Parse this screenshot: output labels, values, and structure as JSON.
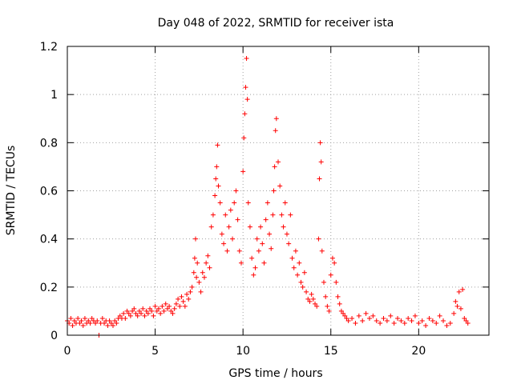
{
  "chart_data": {
    "type": "scatter",
    "title": "Day 048 of 2022, SRMTID for receiver ista",
    "xlabel": "GPS time / hours",
    "ylabel": "SRMTID / TECUs",
    "xlim": [
      0,
      24
    ],
    "ylim": [
      0,
      1.2
    ],
    "xticks": [
      0,
      5,
      10,
      15,
      20
    ],
    "yticks": [
      0,
      0.2,
      0.4,
      0.6,
      0.8,
      1,
      1.2
    ],
    "xtick_labels": [
      "0",
      "5",
      "10",
      "15",
      "20"
    ],
    "ytick_labels": [
      "0",
      "0.2",
      "0.4",
      "0.6",
      "0.8",
      "1",
      "1.2"
    ],
    "grid": true,
    "marker": "plus",
    "marker_color": "#ff0000",
    "series": [
      {
        "name": "SRMTID",
        "x": [
          0.0,
          0.1,
          0.2,
          0.3,
          0.4,
          0.5,
          0.6,
          0.7,
          0.8,
          0.9,
          1.0,
          1.1,
          1.2,
          1.3,
          1.4,
          1.5,
          1.6,
          1.7,
          1.8,
          1.9,
          2.0,
          2.1,
          2.2,
          2.3,
          2.4,
          2.5,
          2.6,
          2.7,
          2.8,
          2.9,
          3.0,
          3.1,
          3.2,
          3.3,
          3.4,
          3.5,
          3.6,
          3.7,
          3.8,
          3.9,
          4.0,
          4.1,
          4.2,
          4.3,
          4.4,
          4.5,
          4.6,
          4.7,
          4.8,
          4.9,
          5.0,
          5.1,
          5.2,
          5.3,
          5.4,
          5.5,
          5.6,
          5.7,
          5.8,
          5.9,
          6.0,
          6.1,
          6.2,
          6.3,
          6.4,
          6.5,
          6.6,
          6.7,
          6.8,
          6.9,
          7.0,
          7.1,
          7.2,
          7.25,
          7.3,
          7.35,
          7.4,
          7.5,
          7.6,
          7.7,
          7.8,
          7.9,
          8.0,
          8.1,
          8.2,
          8.3,
          8.4,
          8.45,
          8.5,
          8.55,
          8.6,
          8.7,
          8.8,
          8.9,
          9.0,
          9.1,
          9.2,
          9.3,
          9.4,
          9.5,
          9.6,
          9.7,
          9.8,
          9.9,
          10.0,
          10.05,
          10.1,
          10.15,
          10.2,
          10.25,
          10.3,
          10.4,
          10.5,
          10.6,
          10.7,
          10.8,
          10.9,
          11.0,
          11.1,
          11.2,
          11.3,
          11.4,
          11.5,
          11.6,
          11.7,
          11.75,
          11.8,
          11.85,
          11.9,
          12.0,
          12.1,
          12.2,
          12.3,
          12.4,
          12.5,
          12.6,
          12.7,
          12.8,
          12.9,
          13.0,
          13.1,
          13.2,
          13.3,
          13.4,
          13.5,
          13.6,
          13.7,
          13.8,
          13.9,
          14.0,
          14.1,
          14.2,
          14.3,
          14.35,
          14.4,
          14.45,
          14.5,
          14.6,
          14.7,
          14.8,
          14.9,
          15.0,
          15.1,
          15.2,
          15.3,
          15.4,
          15.5,
          15.6,
          15.7,
          15.8,
          15.9,
          16.0,
          16.2,
          16.4,
          16.6,
          16.8,
          17.0,
          17.2,
          17.4,
          17.6,
          17.8,
          18.0,
          18.2,
          18.4,
          18.6,
          18.8,
          19.0,
          19.2,
          19.4,
          19.6,
          19.8,
          20.0,
          20.2,
          20.4,
          20.6,
          20.8,
          21.0,
          21.2,
          21.4,
          21.6,
          21.8,
          22.0,
          22.1,
          22.2,
          22.3,
          22.4,
          22.5,
          22.6,
          22.7,
          22.8
        ],
        "y": [
          0.06,
          0.05,
          0.07,
          0.04,
          0.06,
          0.05,
          0.07,
          0.05,
          0.06,
          0.04,
          0.07,
          0.05,
          0.06,
          0.05,
          0.07,
          0.06,
          0.05,
          0.06,
          0.0,
          0.05,
          0.07,
          0.05,
          0.06,
          0.04,
          0.06,
          0.05,
          0.04,
          0.06,
          0.05,
          0.07,
          0.08,
          0.07,
          0.09,
          0.07,
          0.1,
          0.09,
          0.08,
          0.1,
          0.11,
          0.09,
          0.08,
          0.1,
          0.09,
          0.11,
          0.08,
          0.1,
          0.09,
          0.11,
          0.1,
          0.08,
          0.12,
          0.1,
          0.11,
          0.09,
          0.12,
          0.1,
          0.13,
          0.11,
          0.12,
          0.1,
          0.09,
          0.11,
          0.13,
          0.15,
          0.12,
          0.16,
          0.14,
          0.12,
          0.17,
          0.15,
          0.18,
          0.2,
          0.26,
          0.32,
          0.4,
          0.24,
          0.3,
          0.22,
          0.18,
          0.26,
          0.24,
          0.3,
          0.33,
          0.28,
          0.45,
          0.5,
          0.58,
          0.65,
          0.7,
          0.79,
          0.62,
          0.55,
          0.42,
          0.38,
          0.5,
          0.35,
          0.45,
          0.52,
          0.4,
          0.55,
          0.6,
          0.48,
          0.35,
          0.3,
          0.68,
          0.82,
          0.92,
          1.03,
          1.15,
          0.98,
          0.55,
          0.45,
          0.32,
          0.25,
          0.28,
          0.4,
          0.35,
          0.45,
          0.38,
          0.3,
          0.48,
          0.55,
          0.42,
          0.36,
          0.5,
          0.6,
          0.7,
          0.85,
          0.9,
          0.72,
          0.62,
          0.5,
          0.45,
          0.55,
          0.42,
          0.38,
          0.5,
          0.32,
          0.28,
          0.35,
          0.25,
          0.3,
          0.22,
          0.2,
          0.26,
          0.18,
          0.15,
          0.14,
          0.17,
          0.15,
          0.13,
          0.12,
          0.4,
          0.65,
          0.8,
          0.72,
          0.35,
          0.22,
          0.16,
          0.12,
          0.1,
          0.25,
          0.32,
          0.3,
          0.22,
          0.16,
          0.13,
          0.1,
          0.09,
          0.08,
          0.07,
          0.06,
          0.07,
          0.05,
          0.08,
          0.06,
          0.09,
          0.07,
          0.08,
          0.06,
          0.05,
          0.07,
          0.06,
          0.08,
          0.05,
          0.07,
          0.06,
          0.05,
          0.07,
          0.06,
          0.08,
          0.05,
          0.06,
          0.04,
          0.07,
          0.06,
          0.05,
          0.08,
          0.06,
          0.04,
          0.05,
          0.09,
          0.14,
          0.12,
          0.18,
          0.11,
          0.19,
          0.07,
          0.06,
          0.05
        ]
      }
    ]
  }
}
